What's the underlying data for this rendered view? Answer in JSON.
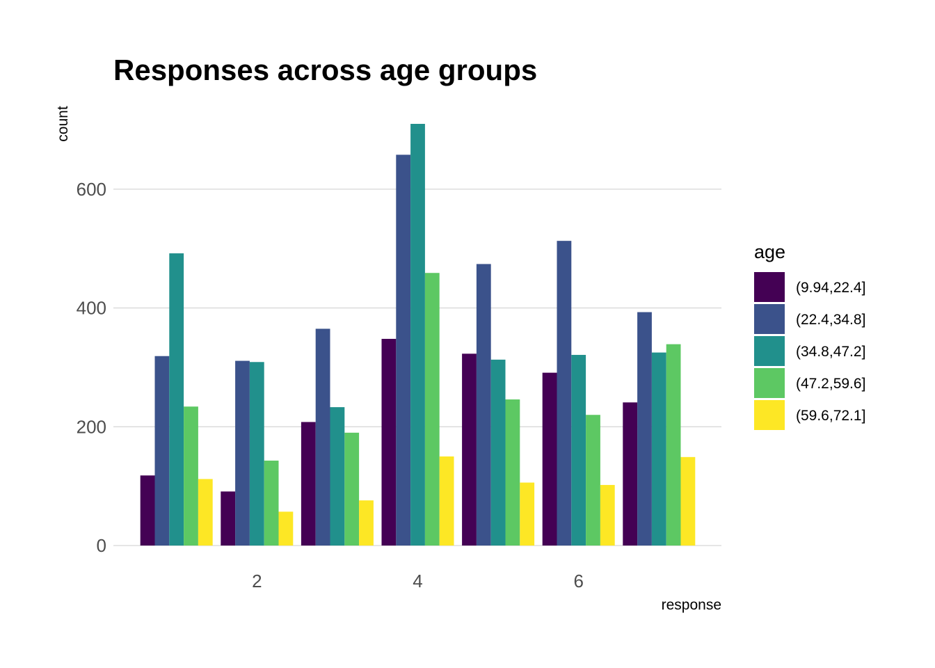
{
  "chart_data": {
    "type": "bar",
    "title": "Responses across age groups",
    "xlabel": "response",
    "ylabel": "count",
    "x": [
      1,
      2,
      3,
      4,
      5,
      6,
      7
    ],
    "x_ticks": [
      "2",
      "4",
      "6"
    ],
    "y_ticks": [
      "0",
      "200",
      "400",
      "600"
    ],
    "ylim": [
      0,
      735
    ],
    "grid": "horizontal major",
    "legend": {
      "title": "age",
      "position": "right"
    },
    "series": [
      {
        "name": "(9.94,22.4]",
        "color": "#440154",
        "values": [
          118,
          91,
          208,
          348,
          323,
          291,
          241
        ]
      },
      {
        "name": "(22.4,34.8]",
        "color": "#3B528B",
        "values": [
          319,
          311,
          365,
          658,
          474,
          513,
          393
        ]
      },
      {
        "name": "(34.8,47.2]",
        "color": "#21908C",
        "values": [
          492,
          309,
          233,
          710,
          313,
          321,
          325
        ]
      },
      {
        "name": "(47.2,59.6]",
        "color": "#5DC863",
        "values": [
          234,
          143,
          190,
          459,
          246,
          220,
          339
        ]
      },
      {
        "name": "(59.6,72.1]",
        "color": "#FDE725",
        "values": [
          112,
          57,
          76,
          150,
          106,
          102,
          149
        ]
      }
    ]
  }
}
